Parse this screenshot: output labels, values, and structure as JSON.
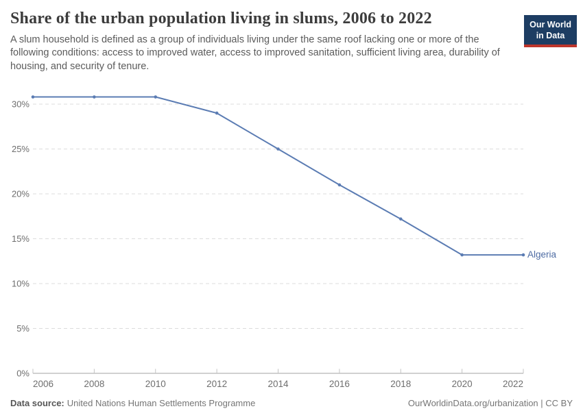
{
  "header": {
    "title": "Share of the urban population living in slums, 2006 to 2022",
    "subtitle": "A slum household is defined as a group of individuals living under the same roof lacking one or more of the following conditions: access to improved water, access to improved sanitation, sufficient living area, durability of housing, and security of tenure."
  },
  "logo": {
    "line1": "Our World",
    "line2": "in Data",
    "background": "#1d3d63",
    "accent": "#be352c"
  },
  "chart_data": {
    "type": "line",
    "title": "Share of the urban population living in slums, 2006 to 2022",
    "x": [
      2006,
      2008,
      2010,
      2012,
      2014,
      2016,
      2018,
      2020,
      2022
    ],
    "series": [
      {
        "name": "Algeria",
        "values": [
          30.8,
          30.8,
          30.8,
          29.0,
          25.0,
          21.0,
          17.2,
          13.2,
          13.2
        ],
        "color": "#5b7cb3"
      }
    ],
    "xlabel": "",
    "ylabel": "",
    "ylim": [
      0,
      31
    ],
    "y_ticks": [
      0,
      5,
      10,
      15,
      20,
      25,
      30
    ],
    "y_tick_suffix": "%",
    "x_ticks": [
      2006,
      2008,
      2010,
      2012,
      2014,
      2016,
      2018,
      2020,
      2022
    ],
    "grid": "dashed-horizontal",
    "legend": "entity-label-right-of-line"
  },
  "footer": {
    "datasource_label": "Data source:",
    "datasource": "United Nations Human Settlements Programme",
    "credit": "OurWorldinData.org/urbanization | CC BY"
  }
}
